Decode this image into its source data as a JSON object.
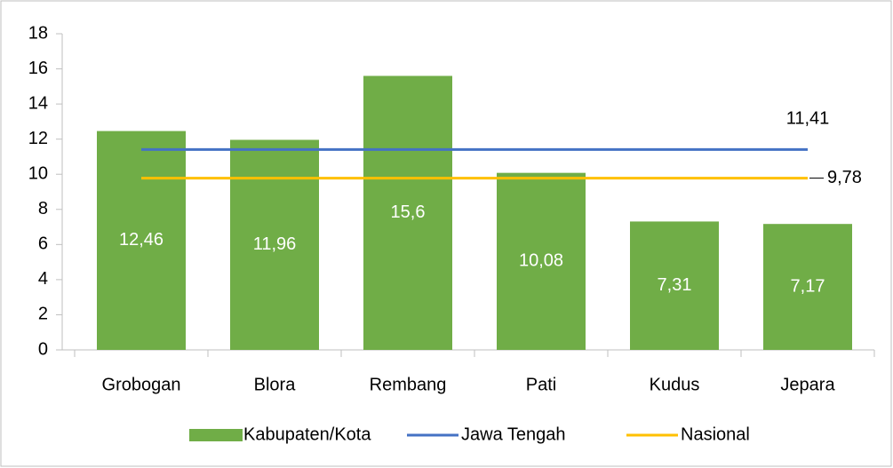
{
  "chart_data": {
    "type": "bar",
    "categories": [
      "Grobogan",
      "Blora",
      "Rembang",
      "Pati",
      "Kudus",
      "Jepara"
    ],
    "series": [
      {
        "name": "Kabupaten/Kota",
        "type": "bar",
        "color": "#70ad47",
        "values": [
          12.46,
          11.96,
          15.6,
          10.08,
          7.31,
          7.17
        ],
        "value_labels": [
          "12,46",
          "11,96",
          "15,6",
          "10,08",
          "7,31",
          "7,17"
        ]
      },
      {
        "name": "Jawa Tengah",
        "type": "line",
        "color": "#4472c4",
        "value": 11.41,
        "value_label": "11,41"
      },
      {
        "name": "Nasional",
        "type": "line",
        "color": "#ffc000",
        "value": 9.78,
        "value_label": "9,78"
      }
    ],
    "ylim": [
      0,
      18
    ],
    "yticks": [
      0,
      2,
      4,
      6,
      8,
      10,
      12,
      14,
      16,
      18
    ],
    "grid": false,
    "legend": "bottom"
  }
}
